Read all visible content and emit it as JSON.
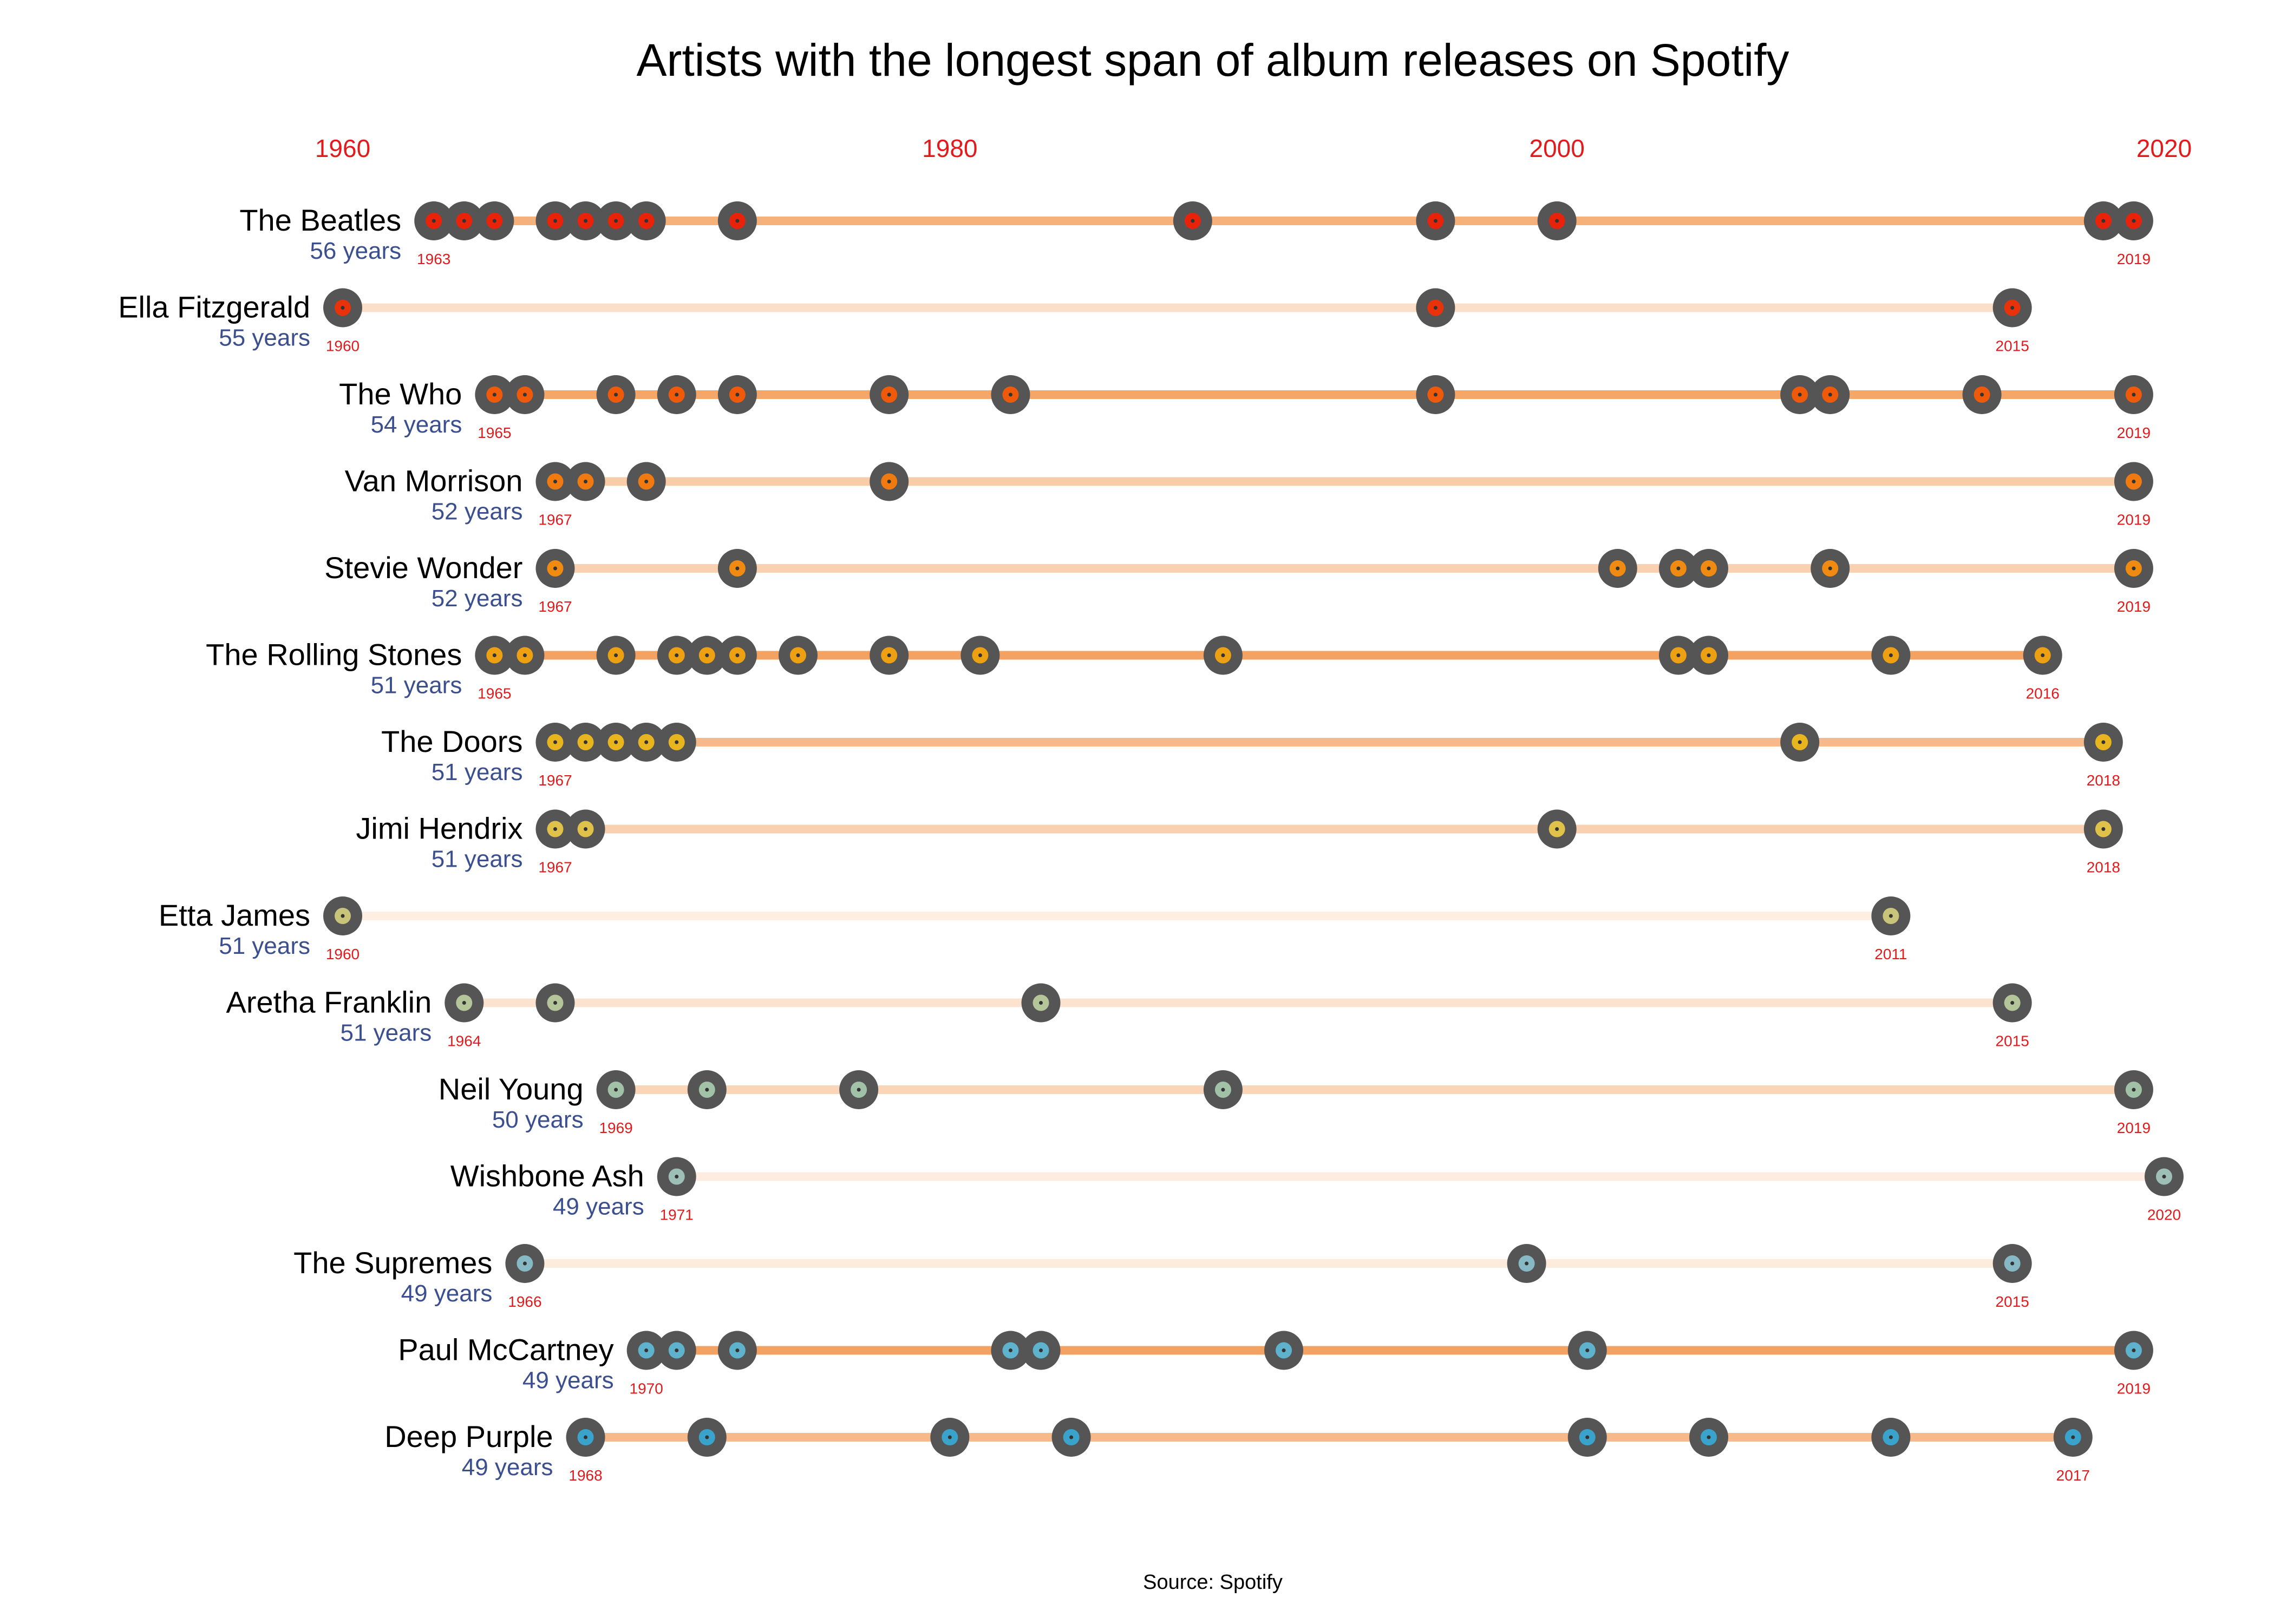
{
  "chart_data": {
    "type": "timeline",
    "title": "Artists with the longest span of album releases on Spotify",
    "source": "Source: Spotify",
    "x_ticks": [
      1960,
      1980,
      2000,
      2020
    ],
    "x_range": [
      1960,
      2020
    ],
    "colors": {
      "title": "#000000",
      "tick": "#e31a1c",
      "year_label": "#e31a1c",
      "span_label": "#3b4f8f",
      "line": "#f4a261",
      "disc": "#555555"
    },
    "series": [
      {
        "name": "The Beatles",
        "span": "56 years",
        "first": 1963,
        "last": 2019,
        "accent": "#e8230a",
        "line_opacity": 0.85,
        "albums": [
          1963,
          1964,
          1965,
          1967,
          1968,
          1969,
          1970,
          1973,
          1988,
          1996,
          2000,
          2018,
          2019
        ]
      },
      {
        "name": "Ella Fitzgerald",
        "span": "55 years",
        "first": 1960,
        "last": 2015,
        "accent": "#e8330a",
        "line_opacity": 0.35,
        "albums": [
          1960,
          1996,
          2015
        ]
      },
      {
        "name": "The Who",
        "span": "54 years",
        "first": 1965,
        "last": 2019,
        "accent": "#ef5a0a",
        "line_opacity": 0.95,
        "albums": [
          1965,
          1966,
          1969,
          1971,
          1973,
          1978,
          1982,
          1996,
          2008,
          2009,
          2014,
          2019
        ]
      },
      {
        "name": "Van Morrison",
        "span": "52 years",
        "first": 1967,
        "last": 2019,
        "accent": "#f07a10",
        "line_opacity": 0.55,
        "albums": [
          1967,
          1968,
          1970,
          1978,
          2019
        ]
      },
      {
        "name": "Stevie Wonder",
        "span": "52 years",
        "first": 1967,
        "last": 2019,
        "accent": "#f08a10",
        "line_opacity": 0.5,
        "albums": [
          1967,
          1973,
          2002,
          2004,
          2005,
          2009,
          2019
        ]
      },
      {
        "name": "The Rolling Stones",
        "span": "51 years",
        "first": 1965,
        "last": 2016,
        "accent": "#eca012",
        "line_opacity": 1.0,
        "albums": [
          1965,
          1966,
          1969,
          1971,
          1972,
          1973,
          1975,
          1978,
          1981,
          1989,
          2004,
          2005,
          2011,
          2016
        ]
      },
      {
        "name": "The Doors",
        "span": "51 years",
        "first": 1967,
        "last": 2018,
        "accent": "#e8b51e",
        "line_opacity": 0.75,
        "albums": [
          1967,
          1968,
          1969,
          1970,
          1971,
          2008,
          2018
        ]
      },
      {
        "name": "Jimi Hendrix",
        "span": "51 years",
        "first": 1967,
        "last": 2018,
        "accent": "#e0c24a",
        "line_opacity": 0.5,
        "albums": [
          1967,
          1968,
          2000,
          2018
        ]
      },
      {
        "name": "Etta James",
        "span": "51 years",
        "first": 1960,
        "last": 2011,
        "accent": "#c8c47a",
        "line_opacity": 0.18,
        "albums": [
          1960,
          2011
        ]
      },
      {
        "name": "Aretha Franklin",
        "span": "51 years",
        "first": 1964,
        "last": 2015,
        "accent": "#b5c59a",
        "line_opacity": 0.3,
        "albums": [
          1964,
          1967,
          1983,
          2015
        ]
      },
      {
        "name": "Neil Young",
        "span": "50 years",
        "first": 1969,
        "last": 2019,
        "accent": "#a2c2a8",
        "line_opacity": 0.45,
        "albums": [
          1969,
          1972,
          1977,
          1989,
          2019
        ]
      },
      {
        "name": "Wishbone Ash",
        "span": "49 years",
        "first": 1971,
        "last": 2020,
        "accent": "#9ebfb5",
        "line_opacity": 0.2,
        "albums": [
          1971,
          2020
        ]
      },
      {
        "name": "The Supremes",
        "span": "49 years",
        "first": 1966,
        "last": 2015,
        "accent": "#86b9c4",
        "line_opacity": 0.22,
        "albums": [
          1966,
          1999,
          2015
        ]
      },
      {
        "name": "Paul McCartney",
        "span": "49 years",
        "first": 1970,
        "last": 2019,
        "accent": "#5fb2cc",
        "line_opacity": 1.0,
        "albums": [
          1970,
          1971,
          1973,
          1982,
          1983,
          1991,
          2001,
          2019
        ]
      },
      {
        "name": "Deep Purple",
        "span": "49 years",
        "first": 1968,
        "last": 2017,
        "accent": "#3aa3cc",
        "line_opacity": 0.75,
        "albums": [
          1968,
          1972,
          1980,
          1984,
          2001,
          2005,
          2011,
          2017
        ]
      }
    ]
  }
}
